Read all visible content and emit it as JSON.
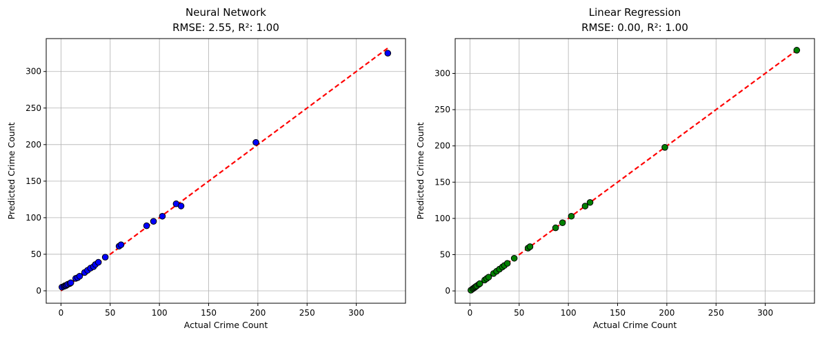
{
  "chart_data": [
    {
      "type": "scatter",
      "title": "Neural Network",
      "subtitle": "RMSE: 2.55, R²: 1.00",
      "xlabel": "Actual Crime Count",
      "ylabel": "Predicted Crime Count",
      "xlim": [
        -15,
        350
      ],
      "ylim": [
        -17,
        345
      ],
      "xticks": [
        0,
        50,
        100,
        150,
        200,
        250,
        300
      ],
      "yticks": [
        0,
        50,
        100,
        150,
        200,
        250,
        300
      ],
      "grid": true,
      "point_color": "#0000ff",
      "point_edge": "#000000",
      "reference_line": {
        "x": [
          0,
          332
        ],
        "y": [
          0,
          332
        ],
        "color": "#ff0000",
        "style": "dashed"
      },
      "series": [
        {
          "x": [
            1,
            3,
            4,
            5,
            6,
            7,
            9,
            10,
            15,
            17,
            19,
            24,
            27,
            30,
            33,
            35,
            38,
            45,
            59,
            61,
            87,
            94,
            103,
            117,
            122,
            198,
            332
          ],
          "y": [
            5,
            6,
            7,
            7,
            8,
            9,
            10,
            11,
            17,
            18,
            20,
            25,
            28,
            31,
            33,
            36,
            39,
            46,
            61,
            63,
            89,
            95,
            102,
            119,
            116,
            203,
            325
          ]
        }
      ]
    },
    {
      "type": "scatter",
      "title": "Linear Regression",
      "subtitle": "RMSE: 0.00, R²: 1.00",
      "xlabel": "Actual Crime Count",
      "ylabel": "Predicted Crime Count",
      "xlim": [
        -15,
        350
      ],
      "ylim": [
        -17,
        348
      ],
      "xticks": [
        0,
        50,
        100,
        150,
        200,
        250,
        300
      ],
      "yticks": [
        0,
        50,
        100,
        150,
        200,
        250,
        300
      ],
      "grid": true,
      "point_color": "#008000",
      "point_edge": "#000000",
      "reference_line": {
        "x": [
          0,
          332
        ],
        "y": [
          0,
          332
        ],
        "color": "#ff0000",
        "style": "dashed"
      },
      "series": [
        {
          "x": [
            1,
            3,
            4,
            5,
            6,
            7,
            9,
            10,
            15,
            17,
            19,
            24,
            27,
            30,
            33,
            35,
            38,
            45,
            59,
            61,
            87,
            94,
            103,
            117,
            122,
            198,
            332
          ],
          "y": [
            1,
            3,
            4,
            5,
            6,
            7,
            9,
            10,
            15,
            17,
            19,
            24,
            27,
            30,
            33,
            35,
            38,
            45,
            59,
            61,
            87,
            94,
            103,
            117,
            122,
            198,
            332
          ]
        }
      ]
    }
  ]
}
